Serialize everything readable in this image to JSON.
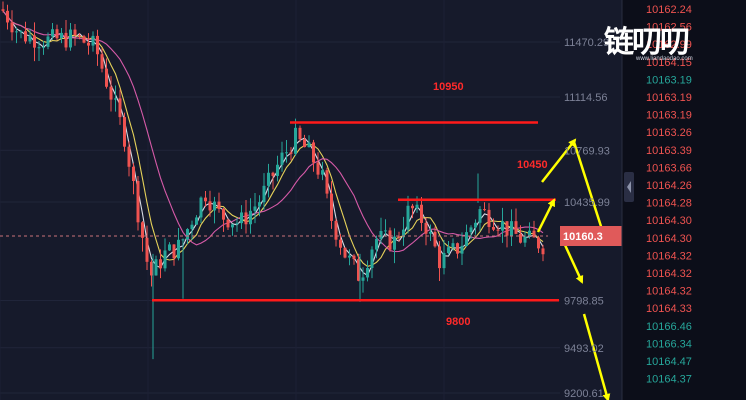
{
  "chart_data": {
    "type": "candlestick",
    "y_ticks": [
      "11470.29",
      "11114.56",
      "10769.93",
      "10435.99",
      "9798.85",
      "9493.02",
      "9200.61"
    ],
    "current_price_tag": "10160.3",
    "levels": [
      {
        "label": "10950",
        "value": 10950
      },
      {
        "label": "10450",
        "value": 10450
      },
      {
        "label": "9800",
        "value": 9800
      }
    ],
    "colors": {
      "up": "#26a69a",
      "down": "#ef5350",
      "ma_white": "#d9dce6",
      "ma_yellow": "#e6d25a",
      "ma_pink": "#d65aa8",
      "level_line": "#ff1a1a",
      "arrow": "#ffff00"
    }
  },
  "logo": {
    "text": "链叨叨",
    "sub": "www.liandaodao.com"
  },
  "price_list": [
    {
      "v": "10162.24",
      "c": "#ef5350"
    },
    {
      "v": "10162.56",
      "c": "#ef5350"
    },
    {
      "v": "10162.99",
      "c": "#ef5350"
    },
    {
      "v": "10164.15",
      "c": "#ef5350"
    },
    {
      "v": "10163.19",
      "c": "#26a69a"
    },
    {
      "v": "10163.19",
      "c": "#ef5350"
    },
    {
      "v": "10163.19",
      "c": "#ef5350"
    },
    {
      "v": "10163.26",
      "c": "#ef5350"
    },
    {
      "v": "10163.39",
      "c": "#ef5350"
    },
    {
      "v": "10163.66",
      "c": "#ef5350"
    },
    {
      "v": "10164.26",
      "c": "#ef5350"
    },
    {
      "v": "10164.28",
      "c": "#ef5350"
    },
    {
      "v": "10164.30",
      "c": "#ef5350"
    },
    {
      "v": "10164.30",
      "c": "#ef5350"
    },
    {
      "v": "10164.32",
      "c": "#ef5350"
    },
    {
      "v": "10164.32",
      "c": "#ef5350"
    },
    {
      "v": "10164.32",
      "c": "#ef5350"
    },
    {
      "v": "10164.33",
      "c": "#ef5350"
    },
    {
      "v": "10166.46",
      "c": "#26a69a"
    },
    {
      "v": "10166.34",
      "c": "#26a69a"
    },
    {
      "v": "10164.47",
      "c": "#26a69a"
    },
    {
      "v": "10164.37",
      "c": "#26a69a"
    }
  ]
}
